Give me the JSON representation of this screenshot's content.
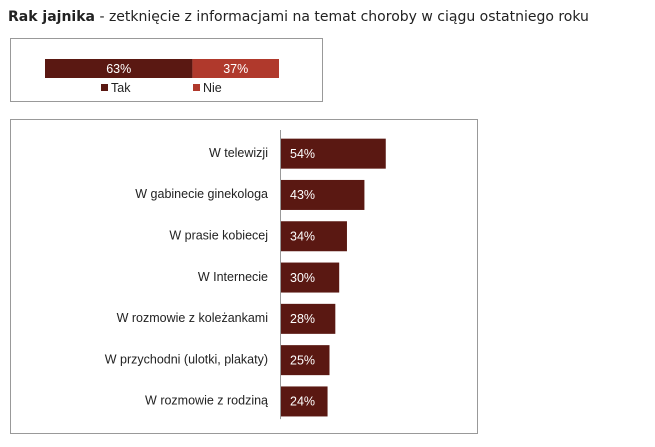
{
  "title": {
    "bold": "Rak jajnika",
    "rest": "- zetknięcie z informacjami na temat choroby w ciągu ostatniego roku"
  },
  "chart_data": [
    {
      "type": "stacked_bar",
      "orientation": "horizontal",
      "categories": [
        null
      ],
      "xlim": [
        0,
        100
      ],
      "legend": "bottom",
      "series": [
        {
          "name": "Tak",
          "color": "#5a1812",
          "values": [
            63
          ],
          "value_labels": [
            "63%"
          ]
        },
        {
          "name": "Nie",
          "color": "#b0392c",
          "values": [
            37
          ],
          "value_labels": [
            "37%"
          ]
        }
      ]
    },
    {
      "type": "bar",
      "orientation": "horizontal",
      "xlim": [
        0,
        100
      ],
      "color": "#5a1812",
      "categories": [
        "W telewizji",
        "W gabinecie ginekologa",
        "W prasie kobiecej",
        "W Internecie",
        "W rozmowie z koleżankami",
        "W przychodni (ulotki, plakaty)",
        "W rozmowie z rodziną"
      ],
      "values": [
        54,
        43,
        34,
        30,
        28,
        25,
        24
      ],
      "value_labels": [
        "54%",
        "43%",
        "34%",
        "30%",
        "28%",
        "25%",
        "24%"
      ]
    }
  ]
}
